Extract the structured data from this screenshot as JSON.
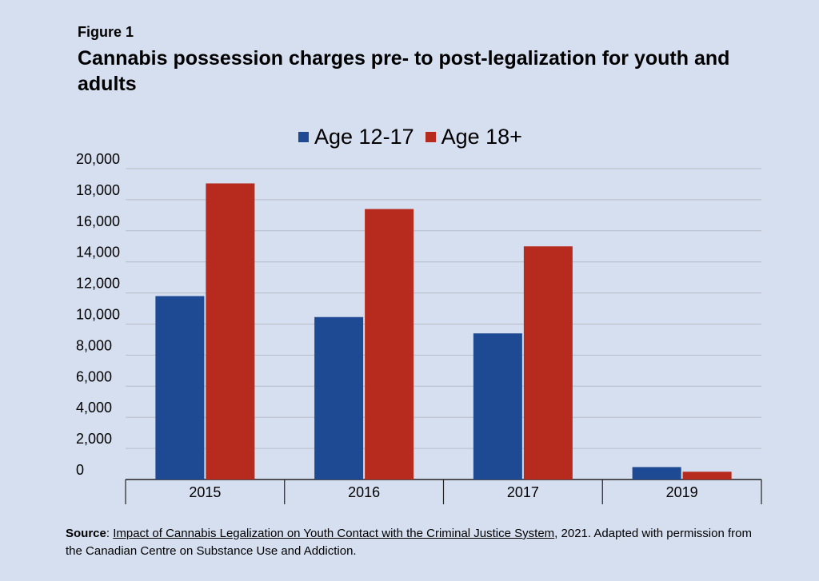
{
  "figure": {
    "label": "Figure 1",
    "title": "Cannabis possession charges pre- to post-legalization for youth and adults"
  },
  "chart_data": {
    "type": "bar",
    "title": "Cannabis possession charges pre- to post-legalization for youth and adults",
    "categories": [
      "2015",
      "2016",
      "2017",
      "2019"
    ],
    "series": [
      {
        "name": "Age 12-17",
        "color": "#1e4a93",
        "values": [
          11800,
          10450,
          9400,
          800
        ]
      },
      {
        "name": "Age 18+",
        "color": "#b72a1e",
        "values": [
          19050,
          17400,
          15000,
          500
        ]
      }
    ],
    "yticks": [
      "0",
      "2,000",
      "4,000",
      "6,000",
      "8,000",
      "10,000",
      "12,000",
      "14,000",
      "16,000",
      "18,000",
      "20,000"
    ],
    "ylim": [
      0,
      20000
    ],
    "xlabel": "",
    "ylabel": "",
    "grid": true,
    "legend_position": "top"
  },
  "source": {
    "label": "Source",
    "link_text": "Impact of Cannabis Legalization on Youth Contact with the Criminal Justice System",
    "rest": ", 2021. Adapted with permission from the Canadian Centre on Substance Use and Addiction."
  }
}
